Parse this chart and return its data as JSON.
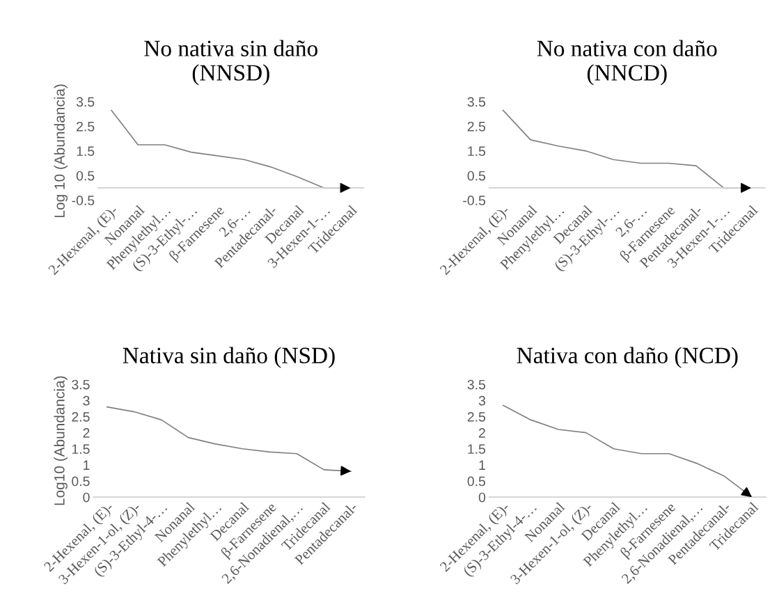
{
  "chart_data": [
    {
      "type": "line",
      "title": "No nativa sin daño\n(NNSD)",
      "ylabel": "Log 10 (Abundancia)",
      "categories": [
        "2-Hexenal, (E)-",
        "Nonanal",
        "Phenylethyl…",
        "(S)-3-Ethyl-…",
        "β-Farnesene",
        "2,6-…",
        "Pentadecanal-",
        "Decanal",
        "3-Hexen-1-…",
        "Tridecanal"
      ],
      "series": [
        {
          "color": "#808080",
          "values": [
            3.15,
            1.75,
            1.75,
            1.45,
            1.3,
            1.15,
            0.85,
            0.45,
            0,
            0
          ]
        }
      ],
      "ylim": [
        -0.5,
        3.5
      ],
      "yticks": [
        -0.5,
        0.5,
        1.5,
        2.5,
        3.5
      ],
      "grid": false
    },
    {
      "type": "line",
      "title": "No nativa con daño\n(NNCD)",
      "categories": [
        "2-Hexenal, (E)-",
        "Nonanal",
        "Phenylethyl…",
        "Decanal",
        "(S)-3-Ethyl-…",
        "2,6-…",
        "β-Farnesene",
        "Pentadecanal-",
        "3-Hexen-1-…",
        "Tridecanal"
      ],
      "series": [
        {
          "color": "#808080",
          "values": [
            3.15,
            1.95,
            1.7,
            1.5,
            1.15,
            1.0,
            1.0,
            0.9,
            0,
            0
          ]
        }
      ],
      "ylim": [
        -0.5,
        3.5
      ],
      "yticks": [
        -0.5,
        0.5,
        1.5,
        2.5,
        3.5
      ],
      "grid": false
    },
    {
      "type": "line",
      "title": "Nativa sin daño (NSD)",
      "ylabel": "Log10 (Abundancia)",
      "categories": [
        "2-Hexenal, (E)-",
        "3-Hexen-1-ol, (Z)-",
        "(S)-3-Ethyl-4-…",
        "Nonanal",
        "Phenylethyl…",
        "Decanal",
        "β-Farnesene",
        "2,6-Nonadienal,…",
        "Tridecanal",
        "Pentadecanal-"
      ],
      "series": [
        {
          "color": "#808080",
          "values": [
            2.8,
            2.65,
            2.4,
            1.85,
            1.65,
            1.5,
            1.4,
            1.35,
            0.85,
            0.8
          ]
        }
      ],
      "ylim": [
        0,
        3.5
      ],
      "yticks": [
        0,
        0.5,
        1,
        1.5,
        2,
        2.5,
        3,
        3.5
      ],
      "grid": false
    },
    {
      "type": "line",
      "title": "Nativa con daño (NCD)",
      "categories": [
        "2-Hexenal, (E)-",
        "(S)-3-Ethyl-4-…",
        "Nonanal",
        "3-Hexen-1-ol, (Z)-",
        "Decanal",
        "Phenylethyl…",
        "β-Farnesene",
        "2,6-Nonadienal,…",
        "Pentadecanal-",
        "Tridecanal"
      ],
      "series": [
        {
          "color": "#808080",
          "values": [
            2.85,
            2.4,
            2.1,
            2.0,
            1.5,
            1.35,
            1.35,
            1.05,
            0.65,
            0
          ]
        }
      ],
      "ylim": [
        0,
        3.5
      ],
      "yticks": [
        0,
        0.5,
        1,
        1.5,
        2,
        2.5,
        3,
        3.5
      ],
      "grid": false
    }
  ]
}
